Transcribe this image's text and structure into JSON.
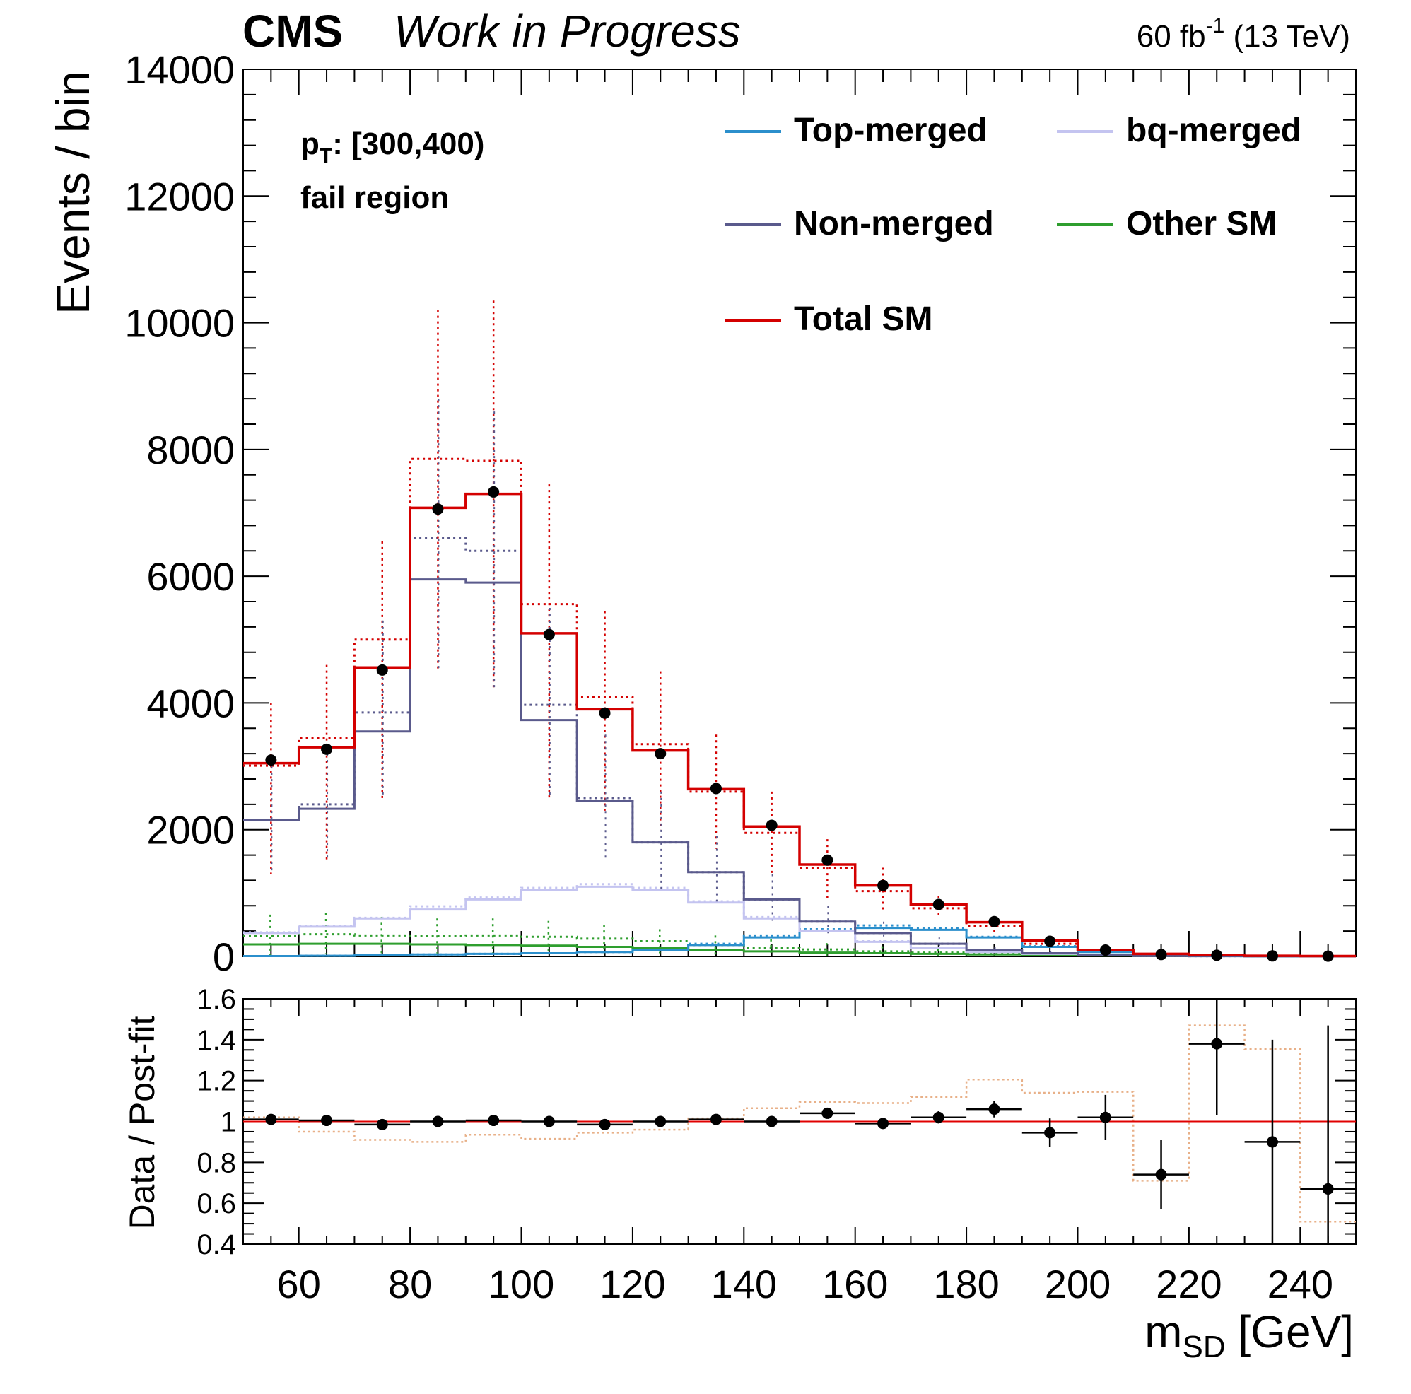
{
  "header": {
    "experiment": "CMS",
    "status": "Work in Progress",
    "lumi_prefix": "60 fb",
    "lumi_exp": "-1",
    "lumi_suffix": " (13 TeV)"
  },
  "annotations": {
    "pt_base": "p",
    "pt_sub": "T",
    "pt_range": ": [300,400)",
    "region": "fail region"
  },
  "chart_data": [
    {
      "type": "line",
      "step": true,
      "ylabel": "Events / bin",
      "xlim": [
        50,
        250
      ],
      "ylim": [
        0,
        14000
      ],
      "bin_edges": [
        50,
        60,
        70,
        80,
        90,
        100,
        110,
        120,
        130,
        140,
        150,
        160,
        170,
        180,
        190,
        200,
        210,
        220,
        230,
        240,
        250
      ],
      "x_ticks": [
        60,
        80,
        100,
        120,
        140,
        160,
        180,
        200,
        220,
        240
      ],
      "y_ticks": [
        0,
        2000,
        4000,
        6000,
        8000,
        10000,
        12000,
        14000
      ],
      "y_tick_labels": [
        "0",
        "2000",
        "4000",
        "6000",
        "8000",
        "10000",
        "12000",
        "14000"
      ],
      "legend": [
        {
          "name": "Top-merged",
          "color": "#2b8fcc"
        },
        {
          "name": "bq-merged",
          "color": "#c4c4f0"
        },
        {
          "name": "Non-merged",
          "color": "#5a5a8c"
        },
        {
          "name": "Other SM",
          "color": "#2e9e2e"
        },
        {
          "name": "Total SM",
          "color": "#d40000"
        }
      ],
      "legend_position": "top-right",
      "series": [
        {
          "name": "Top-merged",
          "color": "#2b8fcc",
          "values": [
            5,
            10,
            20,
            30,
            40,
            50,
            70,
            100,
            180,
            300,
            400,
            450,
            420,
            300,
            150,
            70,
            20,
            10,
            5,
            2
          ],
          "prefit": [
            5,
            10,
            20,
            30,
            40,
            50,
            70,
            110,
            200,
            330,
            430,
            490,
            450,
            310,
            160,
            75,
            22,
            10,
            5,
            2
          ]
        },
        {
          "name": "bq-merged",
          "color": "#c4c4f0",
          "values": [
            370,
            470,
            600,
            740,
            900,
            1050,
            1100,
            1050,
            850,
            600,
            400,
            230,
            130,
            70,
            40,
            20,
            10,
            5,
            3,
            2
          ],
          "prefit": [
            380,
            480,
            610,
            790,
            930,
            1080,
            1140,
            1080,
            870,
            620,
            410,
            240,
            140,
            75,
            42,
            22,
            10,
            5,
            3,
            2
          ]
        },
        {
          "name": "Non-merged",
          "color": "#5a5a8c",
          "values": [
            2150,
            2330,
            3550,
            5950,
            5900,
            3730,
            2450,
            1800,
            1330,
            900,
            550,
            370,
            200,
            100,
            50,
            20,
            8,
            4,
            2,
            1
          ],
          "prefit": [
            2150,
            2400,
            3850,
            6600,
            6400,
            3970,
            2500,
            1800,
            1330,
            900,
            550,
            370,
            200,
            100,
            50,
            20,
            8,
            4,
            2,
            1
          ]
        },
        {
          "name": "Other SM",
          "color": "#2e9e2e",
          "values": [
            190,
            200,
            200,
            190,
            180,
            170,
            150,
            130,
            100,
            80,
            60,
            50,
            40,
            30,
            20,
            15,
            10,
            5,
            3,
            2
          ],
          "prefit": [
            320,
            350,
            330,
            320,
            330,
            310,
            280,
            240,
            180,
            140,
            110,
            80,
            60,
            45,
            30,
            20,
            12,
            6,
            3,
            2
          ]
        },
        {
          "name": "Total SM",
          "color": "#d40000",
          "values": [
            3050,
            3300,
            4560,
            7080,
            7300,
            5100,
            3900,
            3250,
            2640,
            2050,
            1450,
            1120,
            820,
            540,
            250,
            100,
            40,
            20,
            10,
            5
          ],
          "prefit": [
            3010,
            3450,
            5000,
            7850,
            7820,
            5560,
            4100,
            3350,
            2600,
            1950,
            1400,
            1030,
            760,
            480,
            200,
            90,
            30,
            15,
            8,
            4
          ],
          "prefit_err_low": [
            1300,
            1500,
            2500,
            4500,
            4200,
            2500,
            2300,
            2000,
            1700,
            1300,
            900,
            700,
            600,
            350,
            150,
            60,
            20,
            10,
            5,
            3
          ],
          "prefit_err_high": [
            4000,
            4600,
            6550,
            10200,
            10350,
            7450,
            5450,
            4500,
            3500,
            2600,
            1850,
            1400,
            950,
            600,
            250,
            120,
            40,
            20,
            10,
            5
          ],
          "nonmerged_err_low": [
            1300,
            1500,
            2500,
            4500,
            4200,
            2500,
            1500,
            1000,
            800,
            500,
            300,
            200,
            100,
            50,
            20,
            10,
            5,
            2,
            1,
            1
          ],
          "nonmerged_err_high": [
            3000,
            3300,
            5300,
            8800,
            8600,
            5500,
            3500,
            2600,
            1900,
            1300,
            800,
            550,
            300,
            150,
            80,
            30,
            10,
            6,
            3,
            2
          ],
          "other_err_low": [
            0,
            50,
            50,
            50,
            50,
            50,
            50,
            50,
            30,
            20,
            10,
            10,
            5,
            5,
            3,
            2,
            1,
            1,
            0,
            0
          ],
          "other_err_high": [
            660,
            680,
            620,
            600,
            600,
            560,
            500,
            430,
            330,
            270,
            210,
            160,
            120,
            90,
            60,
            40,
            24,
            12,
            6,
            4
          ]
        },
        {
          "name": "Data",
          "x": [
            55,
            65,
            75,
            85,
            95,
            105,
            115,
            125,
            135,
            145,
            155,
            165,
            175,
            185,
            195,
            205,
            215,
            225,
            235,
            245
          ],
          "values": [
            3100,
            3270,
            4520,
            7060,
            7330,
            5080,
            3840,
            3200,
            2650,
            2070,
            1520,
            1120,
            820,
            550,
            240,
            100,
            30,
            18,
            8,
            4
          ]
        }
      ]
    },
    {
      "type": "scatter",
      "ylabel": "Data / Post-fit",
      "xlabel_base": "m",
      "xlabel_sub": "SD",
      "xlabel_unit": " [GeV]",
      "xlim": [
        50,
        250
      ],
      "ylim": [
        0.4,
        1.6
      ],
      "x_ticks": [
        60,
        80,
        100,
        120,
        140,
        160,
        180,
        200,
        220,
        240
      ],
      "x_tick_labels": [
        "60",
        "80",
        "100",
        "120",
        "140",
        "160",
        "180",
        "200",
        "220",
        "240"
      ],
      "y_ticks": [
        0.4,
        0.6,
        0.8,
        1.0,
        1.2,
        1.4,
        1.6
      ],
      "y_tick_labels": [
        "0.4",
        "0.6",
        "0.8",
        "1",
        "1.2",
        "1.4",
        "1.6"
      ],
      "reference_line": 1.0,
      "series": [
        {
          "name": "Data",
          "x": [
            55,
            65,
            75,
            85,
            95,
            105,
            115,
            125,
            135,
            145,
            155,
            165,
            175,
            185,
            195,
            205,
            215,
            225,
            235,
            245
          ],
          "values": [
            1.01,
            1.005,
            0.985,
            1.0,
            1.005,
            1.0,
            0.985,
            1.0,
            1.01,
            1.0,
            1.04,
            0.99,
            1.02,
            1.06,
            0.945,
            1.02,
            0.74,
            1.38,
            0.9,
            0.67
          ],
          "err": [
            0.012,
            0.01,
            0.01,
            0.008,
            0.008,
            0.01,
            0.012,
            0.012,
            0.015,
            0.015,
            0.02,
            0.025,
            0.03,
            0.04,
            0.07,
            0.11,
            0.17,
            0.35,
            0.5,
            0.8
          ]
        },
        {
          "name": "Pre-fit / Post-fit",
          "color": "#e8b088",
          "bin_edges": [
            50,
            60,
            70,
            80,
            90,
            100,
            110,
            120,
            130,
            140,
            150,
            160,
            170,
            180,
            190,
            200,
            210,
            220,
            230,
            240,
            250
          ],
          "values": [
            1.02,
            0.95,
            0.91,
            0.9,
            0.935,
            0.915,
            0.945,
            0.96,
            1.015,
            1.065,
            1.095,
            1.09,
            1.12,
            1.205,
            1.14,
            1.145,
            0.71,
            1.47,
            1.355,
            0.51
          ]
        }
      ]
    }
  ]
}
